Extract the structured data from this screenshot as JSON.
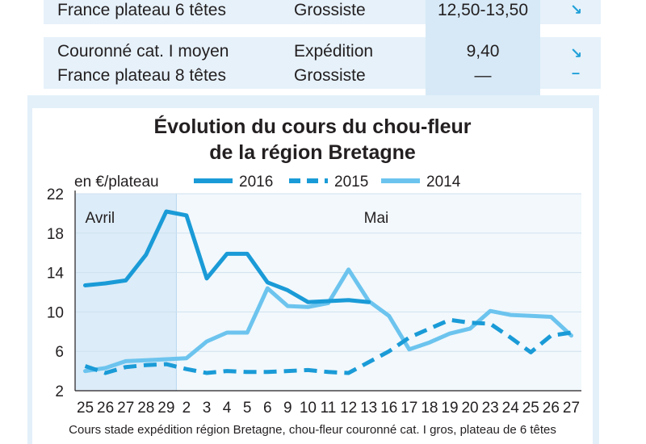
{
  "table": {
    "rows": [
      {
        "product": "France plateau 6 têtes",
        "market": "Grossiste",
        "price": "12,50-13,50",
        "trend": "↘"
      },
      {
        "product_lines": [
          "Couronné cat. I moyen",
          "France plateau 8 têtes"
        ],
        "market_lines": [
          "Expédition",
          "Grossiste"
        ],
        "price_lines": [
          "9,40",
          "—"
        ],
        "trend_lines": [
          "↘",
          "–"
        ]
      }
    ]
  },
  "chart_data": {
    "type": "line",
    "title": "Évolution du cours du chou-fleur de la région Bretagne",
    "title_lines": [
      "Évolution du cours du chou-fleur",
      "de la région Bretagne"
    ],
    "unit_label": "en €/plateau",
    "caption": "Cours stade expédition région Bretagne, chou-fleur couronné cat. I gros, plateau de 6 têtes",
    "x_labels": [
      "25",
      "26",
      "27",
      "28",
      "29",
      "2",
      "3",
      "4",
      "5",
      "6",
      "9",
      "10",
      "11",
      "12",
      "13",
      "16",
      "17",
      "18",
      "19",
      "20",
      "23",
      "24",
      "25",
      "26",
      "27"
    ],
    "month_labels": [
      {
        "text": "Avril",
        "index": 0
      },
      {
        "text": "Mai",
        "index": 14
      }
    ],
    "ylim": [
      2,
      22
    ],
    "yticks": [
      2,
      6,
      10,
      14,
      18,
      22
    ],
    "legend_position": "top",
    "series": [
      {
        "name": "2016",
        "style": "solid-thick",
        "color": "#1a9bd7",
        "values": [
          12.7,
          12.9,
          13.2,
          15.8,
          20.2,
          19.8,
          13.4,
          15.9,
          15.9,
          13.0,
          12.2,
          11.0,
          11.1,
          11.2,
          11.0,
          null,
          null,
          null,
          null,
          null,
          null,
          null,
          null,
          null,
          null
        ]
      },
      {
        "name": "2015",
        "style": "dashed",
        "color": "#1a9bd7",
        "values": [
          4.5,
          3.8,
          4.4,
          4.6,
          4.7,
          4.2,
          3.8,
          4.0,
          3.9,
          3.9,
          4.0,
          4.1,
          3.9,
          3.8,
          4.9,
          6.0,
          7.4,
          8.3,
          9.2,
          8.9,
          8.8,
          7.4,
          5.9,
          7.6,
          7.9
        ]
      },
      {
        "name": "2014",
        "style": "solid",
        "color": "#6cc4ee",
        "values": [
          4.0,
          4.3,
          5.0,
          5.1,
          5.2,
          5.3,
          7.0,
          7.9,
          7.9,
          12.4,
          10.6,
          10.5,
          10.9,
          14.3,
          11.1,
          9.6,
          6.2,
          6.9,
          7.8,
          8.3,
          10.1,
          9.7,
          9.6,
          9.5,
          7.6
        ]
      }
    ]
  }
}
